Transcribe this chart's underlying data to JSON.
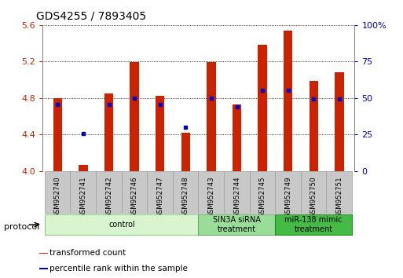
{
  "title": "GDS4255 / 7893405",
  "samples": [
    "GSM952740",
    "GSM952741",
    "GSM952742",
    "GSM952746",
    "GSM952747",
    "GSM952748",
    "GSM952743",
    "GSM952744",
    "GSM952745",
    "GSM952749",
    "GSM952750",
    "GSM952751"
  ],
  "bar_values": [
    4.8,
    4.07,
    4.85,
    5.19,
    4.82,
    4.42,
    5.19,
    4.73,
    5.38,
    5.54,
    4.99,
    5.08
  ],
  "dot_values": [
    4.73,
    4.41,
    4.73,
    4.8,
    4.73,
    4.48,
    4.8,
    4.7,
    4.88,
    4.88,
    4.79,
    4.79
  ],
  "bar_color": "#cc2200",
  "dot_color": "#0000cc",
  "ylim_left": [
    4.0,
    5.6
  ],
  "ylim_right": [
    0,
    100
  ],
  "yticks_left": [
    4.0,
    4.4,
    4.8,
    5.2,
    5.6
  ],
  "yticks_right": [
    0,
    25,
    50,
    75,
    100
  ],
  "ytick_labels_right": [
    "0",
    "25",
    "50",
    "75",
    "100%"
  ],
  "protocols": [
    {
      "label": "control",
      "start": 0,
      "end": 5,
      "color": "#d8f5d0",
      "edge": "#88cc88"
    },
    {
      "label": "SIN3A siRNA\ntreatment",
      "start": 6,
      "end": 8,
      "color": "#99dd99",
      "edge": "#66aa66"
    },
    {
      "label": "miR-138 mimic\ntreatment",
      "start": 9,
      "end": 11,
      "color": "#44bb44",
      "edge": "#228822"
    }
  ],
  "legend_items": [
    {
      "label": "transformed count",
      "color": "#cc2200"
    },
    {
      "label": "percentile rank within the sample",
      "color": "#0000cc"
    }
  ],
  "protocol_label": "protocol",
  "title_fontsize": 10,
  "tick_fontsize": 8,
  "bar_width": 0.35,
  "label_box_color": "#c8c8c8",
  "label_edge_color": "#999999"
}
